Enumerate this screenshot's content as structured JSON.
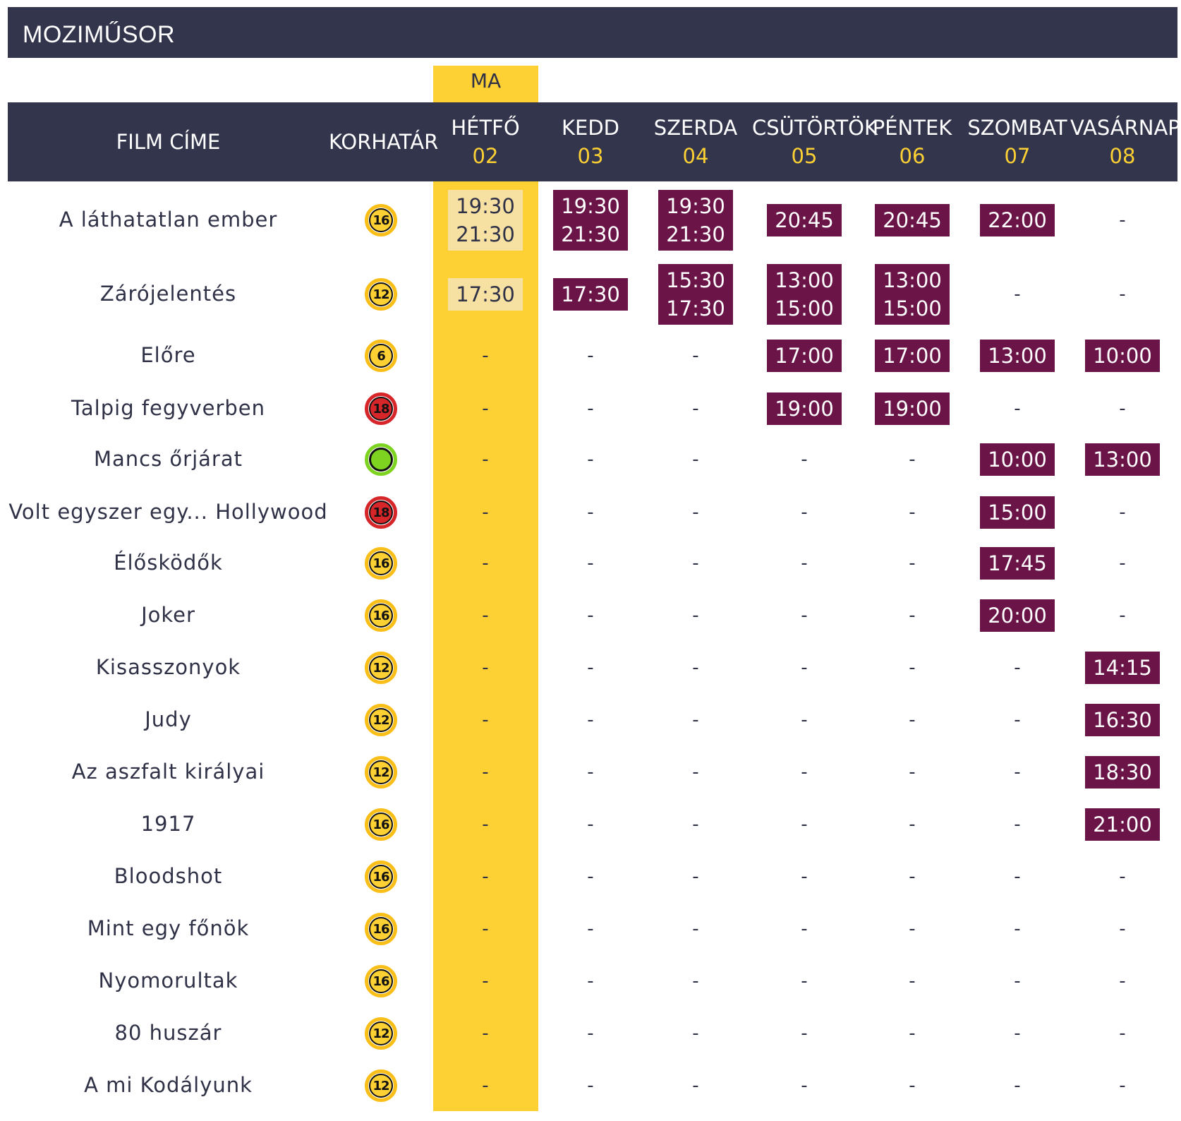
{
  "app_title": "MOZIMŰSOR",
  "today_label": "MA",
  "columns": {
    "film_title": "FILM CÍME",
    "age_rating": "KORHATÁR"
  },
  "days": [
    {
      "name": "HÉTFŐ",
      "num": "02"
    },
    {
      "name": "KEDD",
      "num": "03"
    },
    {
      "name": "SZERDA",
      "num": "04"
    },
    {
      "name": "CSÜTÖRTÖK",
      "num": "05"
    },
    {
      "name": "PÉNTEK",
      "num": "06"
    },
    {
      "name": "SZOMBAT",
      "num": "07"
    },
    {
      "name": "VASÁRNAP",
      "num": "08"
    }
  ],
  "colors": {
    "header_bg": "#33354c",
    "today_column": "#fdd034",
    "showtime_bg": "#6a1448",
    "today_showtime_bg": "#f6e1a3",
    "badge_yellow": "#f9bf18",
    "badge_red": "#d6262a",
    "badge_green": "#7ed321"
  },
  "films": [
    {
      "title": "A láthatatlan ember",
      "rating": "16",
      "rating_color": "yellow",
      "times": [
        [
          "19:30",
          "21:30"
        ],
        [
          "19:30",
          "21:30"
        ],
        [
          "19:30",
          "21:30"
        ],
        [
          "20:45"
        ],
        [
          "20:45"
        ],
        [
          "22:00"
        ],
        []
      ]
    },
    {
      "title": "Zárójelentés",
      "rating": "12",
      "rating_color": "yellow",
      "times": [
        [
          "17:30"
        ],
        [
          "17:30"
        ],
        [
          "15:30",
          "17:30"
        ],
        [
          "13:00",
          "15:00"
        ],
        [
          "13:00",
          "15:00"
        ],
        [],
        []
      ]
    },
    {
      "title": "Előre",
      "rating": "6",
      "rating_color": "yellow",
      "times": [
        [],
        [],
        [],
        [
          "17:00"
        ],
        [
          "17:00"
        ],
        [
          "13:00"
        ],
        [
          "10:00"
        ]
      ]
    },
    {
      "title": "Talpig fegyverben",
      "rating": "18",
      "rating_color": "red",
      "times": [
        [],
        [],
        [],
        [
          "19:00"
        ],
        [
          "19:00"
        ],
        [],
        []
      ]
    },
    {
      "title": "Mancs őrjárat",
      "rating": "",
      "rating_color": "green",
      "times": [
        [],
        [],
        [],
        [],
        [],
        [
          "10:00"
        ],
        [
          "13:00"
        ]
      ]
    },
    {
      "title": "Volt egyszer egy... Hollywood",
      "rating": "18",
      "rating_color": "red",
      "times": [
        [],
        [],
        [],
        [],
        [],
        [
          "15:00"
        ],
        []
      ]
    },
    {
      "title": "Élősködők",
      "rating": "16",
      "rating_color": "yellow",
      "times": [
        [],
        [],
        [],
        [],
        [],
        [
          "17:45"
        ],
        []
      ]
    },
    {
      "title": "Joker",
      "rating": "16",
      "rating_color": "yellow",
      "times": [
        [],
        [],
        [],
        [],
        [],
        [
          "20:00"
        ],
        []
      ]
    },
    {
      "title": "Kisasszonyok",
      "rating": "12",
      "rating_color": "yellow",
      "times": [
        [],
        [],
        [],
        [],
        [],
        [],
        [
          "14:15"
        ]
      ]
    },
    {
      "title": "Judy",
      "rating": "12",
      "rating_color": "yellow",
      "times": [
        [],
        [],
        [],
        [],
        [],
        [],
        [
          "16:30"
        ]
      ]
    },
    {
      "title": "Az aszfalt királyai",
      "rating": "12",
      "rating_color": "yellow",
      "times": [
        [],
        [],
        [],
        [],
        [],
        [],
        [
          "18:30"
        ]
      ]
    },
    {
      "title": "1917",
      "rating": "16",
      "rating_color": "yellow",
      "times": [
        [],
        [],
        [],
        [],
        [],
        [],
        [
          "21:00"
        ]
      ]
    },
    {
      "title": "Bloodshot",
      "rating": "16",
      "rating_color": "yellow",
      "times": [
        [],
        [],
        [],
        [],
        [],
        [],
        []
      ]
    },
    {
      "title": "Mint egy főnök",
      "rating": "16",
      "rating_color": "yellow",
      "times": [
        [],
        [],
        [],
        [],
        [],
        [],
        []
      ]
    },
    {
      "title": "Nyomorultak",
      "rating": "16",
      "rating_color": "yellow",
      "times": [
        [],
        [],
        [],
        [],
        [],
        [],
        []
      ]
    },
    {
      "title": "80 huszár",
      "rating": "12",
      "rating_color": "yellow",
      "times": [
        [],
        [],
        [],
        [],
        [],
        [],
        []
      ]
    },
    {
      "title": "A mi Kodályunk",
      "rating": "12",
      "rating_color": "yellow",
      "times": [
        [],
        [],
        [],
        [],
        [],
        [],
        []
      ]
    }
  ],
  "empty_marker": "-"
}
